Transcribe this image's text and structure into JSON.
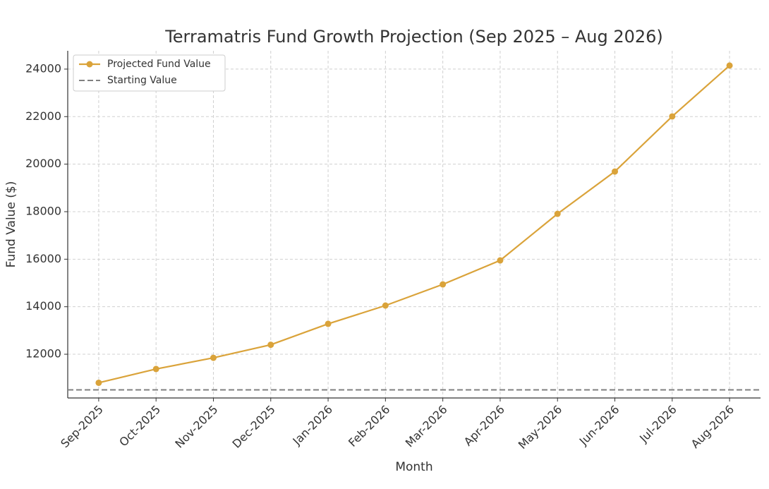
{
  "chart_data": {
    "type": "line",
    "title": "Terramatris Fund Growth Projection (Sep 2025 – Aug 2026)",
    "x_label": "Month",
    "y_label": "Fund Value ($)",
    "categories": [
      "Sep-2025",
      "Oct-2025",
      "Nov-2025",
      "Dec-2025",
      "Jan-2026",
      "Feb-2026",
      "Mar-2026",
      "Apr-2026",
      "May-2026",
      "Jun-2026",
      "Jul-2026",
      "Aug-2026"
    ],
    "series": [
      {
        "name": "Projected Fund Value",
        "color": "#daa33a",
        "values": [
          10800,
          11380,
          11850,
          12400,
          13280,
          14050,
          14940,
          15950,
          17910,
          19690,
          22010,
          24150
        ]
      }
    ],
    "hlines": [
      {
        "name": "Starting Value",
        "value": 10500,
        "color": "#808080"
      }
    ],
    "ylim": [
      10160,
      24770
    ],
    "yticks": [
      12000,
      14000,
      16000,
      18000,
      20000,
      22000,
      24000
    ],
    "grid": true,
    "legend": "upper-left"
  }
}
